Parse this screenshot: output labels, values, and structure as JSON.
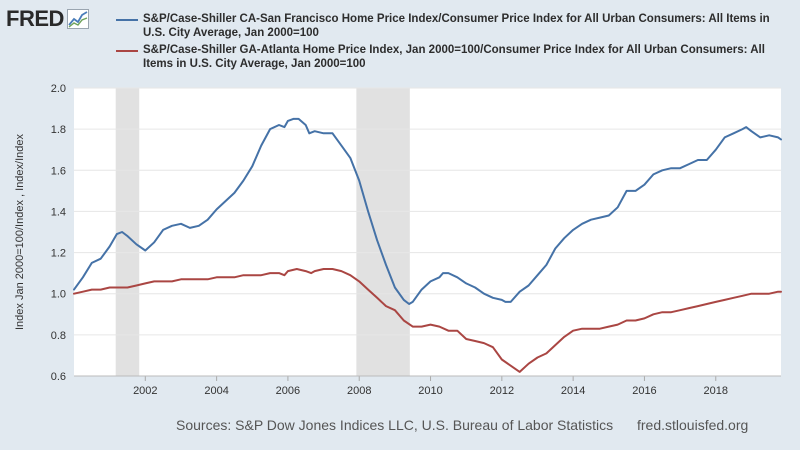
{
  "logo": {
    "text": "FRED",
    "icon": "fred-chart-icon"
  },
  "chart_data": {
    "type": "line",
    "title": "",
    "xlabel": "",
    "ylabel": "Index Jan 2000=100/Index , Index/Index",
    "xlim": [
      2000,
      2019.83
    ],
    "ylim": [
      0.6,
      2.0
    ],
    "yticks": [
      0.6,
      0.8,
      1.0,
      1.2,
      1.4,
      1.6,
      1.8,
      2.0
    ],
    "ytick_labels": [
      "0.6",
      "0.8",
      "1.0",
      "1.2",
      "1.4",
      "1.6",
      "1.8",
      "2.0"
    ],
    "xticks": [
      2002,
      2004,
      2006,
      2008,
      2010,
      2012,
      2014,
      2016,
      2018
    ],
    "xtick_labels": [
      "2002",
      "2004",
      "2006",
      "2008",
      "2010",
      "2012",
      "2014",
      "2016",
      "2018"
    ],
    "grid": true,
    "recessions": [
      {
        "start": 2001.17,
        "end": 2001.83
      },
      {
        "start": 2007.92,
        "end": 2009.42
      }
    ],
    "series": [
      {
        "name": "S&P/Case-Shiller CA-San Francisco Home Price Index/Consumer Price Index for All Urban Consumers: All Items in U.S. City Average, Jan 2000=100",
        "color": "#4572a7",
        "points": [
          [
            2000.0,
            1.02
          ],
          [
            2000.25,
            1.08
          ],
          [
            2000.5,
            1.15
          ],
          [
            2000.75,
            1.17
          ],
          [
            2001.0,
            1.23
          ],
          [
            2001.2,
            1.29
          ],
          [
            2001.35,
            1.3
          ],
          [
            2001.5,
            1.28
          ],
          [
            2001.75,
            1.24
          ],
          [
            2002.0,
            1.21
          ],
          [
            2002.25,
            1.25
          ],
          [
            2002.5,
            1.31
          ],
          [
            2002.75,
            1.33
          ],
          [
            2003.0,
            1.34
          ],
          [
            2003.25,
            1.32
          ],
          [
            2003.5,
            1.33
          ],
          [
            2003.75,
            1.36
          ],
          [
            2004.0,
            1.41
          ],
          [
            2004.25,
            1.45
          ],
          [
            2004.5,
            1.49
          ],
          [
            2004.75,
            1.55
          ],
          [
            2005.0,
            1.62
          ],
          [
            2005.25,
            1.72
          ],
          [
            2005.5,
            1.8
          ],
          [
            2005.75,
            1.82
          ],
          [
            2005.9,
            1.81
          ],
          [
            2006.0,
            1.84
          ],
          [
            2006.15,
            1.85
          ],
          [
            2006.3,
            1.85
          ],
          [
            2006.5,
            1.82
          ],
          [
            2006.6,
            1.78
          ],
          [
            2006.75,
            1.79
          ],
          [
            2007.0,
            1.78
          ],
          [
            2007.25,
            1.78
          ],
          [
            2007.5,
            1.72
          ],
          [
            2007.75,
            1.66
          ],
          [
            2008.0,
            1.55
          ],
          [
            2008.25,
            1.4
          ],
          [
            2008.5,
            1.26
          ],
          [
            2008.75,
            1.14
          ],
          [
            2009.0,
            1.03
          ],
          [
            2009.25,
            0.97
          ],
          [
            2009.4,
            0.95
          ],
          [
            2009.5,
            0.96
          ],
          [
            2009.75,
            1.02
          ],
          [
            2010.0,
            1.06
          ],
          [
            2010.25,
            1.08
          ],
          [
            2010.35,
            1.1
          ],
          [
            2010.5,
            1.1
          ],
          [
            2010.75,
            1.08
          ],
          [
            2011.0,
            1.05
          ],
          [
            2011.25,
            1.03
          ],
          [
            2011.5,
            1.0
          ],
          [
            2011.75,
            0.98
          ],
          [
            2012.0,
            0.97
          ],
          [
            2012.1,
            0.96
          ],
          [
            2012.25,
            0.96
          ],
          [
            2012.5,
            1.01
          ],
          [
            2012.75,
            1.04
          ],
          [
            2013.0,
            1.09
          ],
          [
            2013.25,
            1.14
          ],
          [
            2013.5,
            1.22
          ],
          [
            2013.75,
            1.27
          ],
          [
            2014.0,
            1.31
          ],
          [
            2014.25,
            1.34
          ],
          [
            2014.5,
            1.36
          ],
          [
            2014.75,
            1.37
          ],
          [
            2015.0,
            1.38
          ],
          [
            2015.25,
            1.42
          ],
          [
            2015.5,
            1.5
          ],
          [
            2015.75,
            1.5
          ],
          [
            2016.0,
            1.53
          ],
          [
            2016.25,
            1.58
          ],
          [
            2016.5,
            1.6
          ],
          [
            2016.75,
            1.61
          ],
          [
            2017.0,
            1.61
          ],
          [
            2017.25,
            1.63
          ],
          [
            2017.5,
            1.65
          ],
          [
            2017.75,
            1.65
          ],
          [
            2018.0,
            1.7
          ],
          [
            2018.25,
            1.76
          ],
          [
            2018.5,
            1.78
          ],
          [
            2018.75,
            1.8
          ],
          [
            2018.85,
            1.81
          ],
          [
            2019.0,
            1.79
          ],
          [
            2019.25,
            1.76
          ],
          [
            2019.5,
            1.77
          ],
          [
            2019.75,
            1.76
          ],
          [
            2019.83,
            1.75
          ]
        ]
      },
      {
        "name": "S&P/Case-Shiller GA-Atlanta Home Price Index, Jan 2000=100/Consumer Price Index for All Urban Consumers: All Items in U.S. City Average, Jan 2000=100",
        "color": "#aa4643",
        "points": [
          [
            2000.0,
            1.0
          ],
          [
            2000.25,
            1.01
          ],
          [
            2000.5,
            1.02
          ],
          [
            2000.75,
            1.02
          ],
          [
            2001.0,
            1.03
          ],
          [
            2001.25,
            1.03
          ],
          [
            2001.5,
            1.03
          ],
          [
            2001.75,
            1.04
          ],
          [
            2002.0,
            1.05
          ],
          [
            2002.25,
            1.06
          ],
          [
            2002.5,
            1.06
          ],
          [
            2002.75,
            1.06
          ],
          [
            2003.0,
            1.07
          ],
          [
            2003.25,
            1.07
          ],
          [
            2003.5,
            1.07
          ],
          [
            2003.75,
            1.07
          ],
          [
            2004.0,
            1.08
          ],
          [
            2004.25,
            1.08
          ],
          [
            2004.5,
            1.08
          ],
          [
            2004.75,
            1.09
          ],
          [
            2005.0,
            1.09
          ],
          [
            2005.25,
            1.09
          ],
          [
            2005.5,
            1.1
          ],
          [
            2005.75,
            1.1
          ],
          [
            2005.9,
            1.09
          ],
          [
            2006.0,
            1.11
          ],
          [
            2006.25,
            1.12
          ],
          [
            2006.5,
            1.11
          ],
          [
            2006.65,
            1.1
          ],
          [
            2006.75,
            1.11
          ],
          [
            2007.0,
            1.12
          ],
          [
            2007.25,
            1.12
          ],
          [
            2007.5,
            1.11
          ],
          [
            2007.75,
            1.09
          ],
          [
            2008.0,
            1.06
          ],
          [
            2008.25,
            1.02
          ],
          [
            2008.5,
            0.98
          ],
          [
            2008.75,
            0.94
          ],
          [
            2009.0,
            0.92
          ],
          [
            2009.25,
            0.87
          ],
          [
            2009.5,
            0.84
          ],
          [
            2009.75,
            0.84
          ],
          [
            2010.0,
            0.85
          ],
          [
            2010.25,
            0.84
          ],
          [
            2010.5,
            0.82
          ],
          [
            2010.75,
            0.82
          ],
          [
            2011.0,
            0.78
          ],
          [
            2011.25,
            0.77
          ],
          [
            2011.5,
            0.76
          ],
          [
            2011.75,
            0.74
          ],
          [
            2012.0,
            0.68
          ],
          [
            2012.25,
            0.65
          ],
          [
            2012.5,
            0.62
          ],
          [
            2012.75,
            0.66
          ],
          [
            2013.0,
            0.69
          ],
          [
            2013.25,
            0.71
          ],
          [
            2013.5,
            0.75
          ],
          [
            2013.75,
            0.79
          ],
          [
            2014.0,
            0.82
          ],
          [
            2014.25,
            0.83
          ],
          [
            2014.5,
            0.83
          ],
          [
            2014.75,
            0.83
          ],
          [
            2015.0,
            0.84
          ],
          [
            2015.25,
            0.85
          ],
          [
            2015.5,
            0.87
          ],
          [
            2015.75,
            0.87
          ],
          [
            2016.0,
            0.88
          ],
          [
            2016.25,
            0.9
          ],
          [
            2016.5,
            0.91
          ],
          [
            2016.75,
            0.91
          ],
          [
            2017.0,
            0.92
          ],
          [
            2017.25,
            0.93
          ],
          [
            2017.5,
            0.94
          ],
          [
            2017.75,
            0.95
          ],
          [
            2018.0,
            0.96
          ],
          [
            2018.25,
            0.97
          ],
          [
            2018.5,
            0.98
          ],
          [
            2018.75,
            0.99
          ],
          [
            2019.0,
            1.0
          ],
          [
            2019.25,
            1.0
          ],
          [
            2019.5,
            1.0
          ],
          [
            2019.75,
            1.01
          ],
          [
            2019.83,
            1.01
          ]
        ]
      }
    ]
  },
  "footer": {
    "source": "Sources: S&P Dow Jones Indices LLC, U.S. Bureau of Labor Statistics",
    "url": "fred.stlouisfed.org"
  }
}
